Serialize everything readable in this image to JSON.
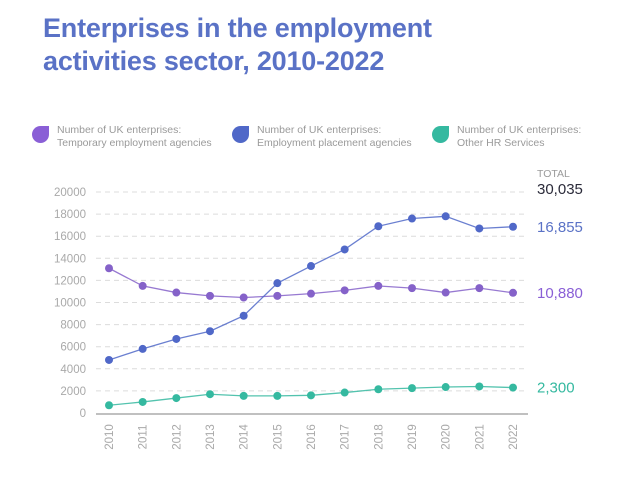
{
  "page": {
    "title_lines": [
      "Enterprises in the employment",
      "activities sector, 2010-2022"
    ]
  },
  "legend": [
    {
      "line1": "Number of UK enterprises:",
      "line2": "Temporary employment agencies",
      "color": "#8a5fd6"
    },
    {
      "line1": "Number of UK enterprises:",
      "line2": "Employment placement agencies",
      "color": "#5068c8"
    },
    {
      "line1": "Number of UK enterprises:",
      "line2": "Other HR Services",
      "color": "#35b9a0"
    }
  ],
  "annotations": {
    "total_label": "TOTAL",
    "total_value": "30,035",
    "end_labels": [
      {
        "series": "Employment placement agencies",
        "text": "16,855",
        "color": "#5a72c6"
      },
      {
        "series": "Temporary employment agencies",
        "text": "10,880",
        "color": "#8a5fd6"
      },
      {
        "series": "Other HR Services",
        "text": "2,300",
        "color": "#35b9a0"
      }
    ]
  },
  "chart_data": {
    "type": "line",
    "title": "Enterprises in the employment activities sector, 2010-2022",
    "xlabel": "",
    "ylabel": "",
    "x": [
      "2010",
      "2011",
      "2012",
      "2013",
      "2014",
      "2015",
      "2016",
      "2017",
      "2018",
      "2019",
      "2020",
      "2021",
      "2022"
    ],
    "ylim": [
      0,
      20000
    ],
    "yticks": [
      0,
      2000,
      4000,
      6000,
      8000,
      10000,
      12000,
      14000,
      16000,
      18000,
      20000
    ],
    "grid": true,
    "legend_position": "top",
    "series": [
      {
        "name": "Number of UK enterprises: Temporary employment agencies",
        "color": "#8562c9",
        "values": [
          13100,
          11500,
          10900,
          10600,
          10450,
          10600,
          10800,
          11100,
          11500,
          11300,
          10900,
          11300,
          10880
        ]
      },
      {
        "name": "Number of UK enterprises: Employment placement agencies",
        "color": "#5068c8",
        "values": [
          4800,
          5800,
          6700,
          7400,
          8800,
          11750,
          13300,
          14800,
          16900,
          17600,
          17800,
          16700,
          16855
        ]
      },
      {
        "name": "Number of UK enterprises: Other HR Services",
        "color": "#35b9a0",
        "values": [
          700,
          1000,
          1350,
          1700,
          1550,
          1550,
          1600,
          1850,
          2150,
          2250,
          2350,
          2400,
          2300
        ]
      }
    ],
    "annotations": {
      "total_2022": "30,035",
      "end_values": [
        "16,855",
        "10,880",
        "2,300"
      ]
    }
  }
}
